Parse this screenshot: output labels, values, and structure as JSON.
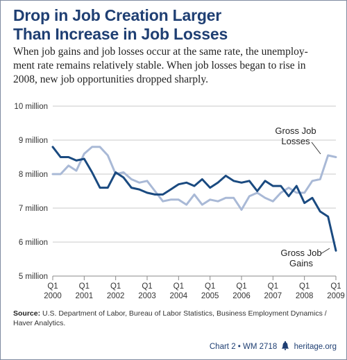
{
  "header": {
    "title_line1": "Drop in Job Creation Larger",
    "title_line2": "Than Increase in Job Losses",
    "subtitle_line1": "When job gains and job losses occur at the same rate, the unemploy-",
    "subtitle_line2": "ment rate remains relatively stable. When job losses began to rise in",
    "subtitle_line3": "2008, new job opportunities dropped sharply."
  },
  "chart_data": {
    "type": "line",
    "yticks": [
      "5 million",
      "6 million",
      "7 million",
      "8 million",
      "9 million",
      "10 million"
    ],
    "ylim": [
      5,
      10
    ],
    "xlim": [
      2000.0,
      2009.0
    ],
    "xticks": [
      {
        "q": "Q1",
        "year": "2000",
        "x": 2000.0
      },
      {
        "q": "Q1",
        "year": "2001",
        "x": 2001.0
      },
      {
        "q": "Q1",
        "year": "2002",
        "x": 2002.0
      },
      {
        "q": "Q1",
        "year": "2003",
        "x": 2003.0
      },
      {
        "q": "Q1",
        "year": "2004",
        "x": 2004.0
      },
      {
        "q": "Q1",
        "year": "2005",
        "x": 2005.0
      },
      {
        "q": "Q1",
        "year": "2006",
        "x": 2006.0
      },
      {
        "q": "Q1",
        "year": "2007",
        "x": 2007.0
      },
      {
        "q": "Q1",
        "year": "2008",
        "x": 2008.0
      },
      {
        "q": "Q1",
        "year": "2009",
        "x": 2009.0
      }
    ],
    "grid": true,
    "series": [
      {
        "name": "Gross Job Gains",
        "label_line1": "Gross Job",
        "label_line2": "Gains",
        "color": "#1a4a80",
        "values": [
          8.8,
          8.5,
          8.5,
          8.4,
          8.45,
          8.05,
          7.6,
          7.6,
          8.05,
          7.9,
          7.6,
          7.55,
          7.45,
          7.4,
          7.4,
          7.55,
          7.7,
          7.75,
          7.65,
          7.85,
          7.6,
          7.75,
          7.95,
          7.8,
          7.75,
          7.8,
          7.5,
          7.8,
          7.65,
          7.65,
          7.35,
          7.65,
          7.15,
          7.3,
          6.9,
          6.75,
          5.75
        ]
      },
      {
        "name": "Gross Job Losses",
        "label_line1": "Gross Job",
        "label_line2": "Losses",
        "color": "#a9b9d6",
        "values": [
          8.0,
          8.0,
          8.25,
          8.1,
          8.6,
          8.8,
          8.8,
          8.55,
          8.0,
          8.05,
          7.85,
          7.75,
          7.8,
          7.5,
          7.2,
          7.25,
          7.25,
          7.1,
          7.4,
          7.1,
          7.25,
          7.2,
          7.3,
          7.3,
          6.95,
          7.35,
          7.45,
          7.3,
          7.2,
          7.45,
          7.6,
          7.45,
          7.45,
          7.8,
          7.85,
          8.55,
          8.5
        ]
      }
    ]
  },
  "footer": {
    "source_label": "Source:",
    "source_text": " U.S. Department of Labor, Bureau of Labor Statistics, Business Employment Dynamics / Haver Analytics.",
    "credit_chart": "Chart 2 • WM 2718",
    "credit_site": "heritage.org",
    "bell_color": "#1f3f73"
  }
}
